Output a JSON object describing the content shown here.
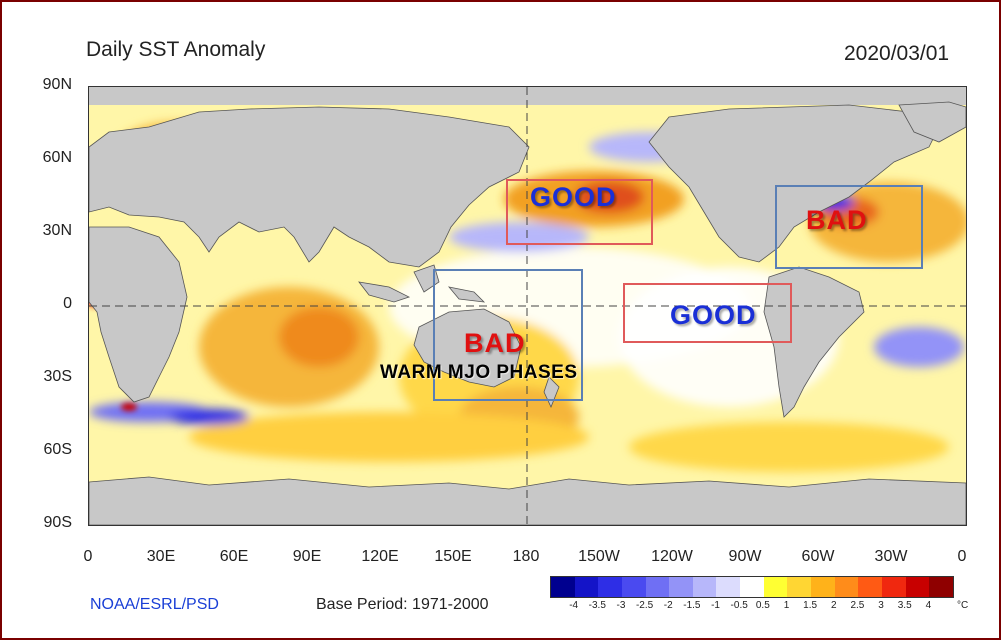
{
  "title": "Daily SST Anomaly",
  "date": "2020/03/01",
  "y_ticks": [
    "90N",
    "60N",
    "30N",
    "0",
    "30S",
    "60S",
    "90S"
  ],
  "x_ticks": [
    "0",
    "30E",
    "60E",
    "90E",
    "120E",
    "150E",
    "180",
    "150W",
    "120W",
    "90W",
    "60W",
    "30W",
    "0"
  ],
  "source": "NOAA/ESRL/PSD",
  "base_period": "Base Period: 1971-2000",
  "colorbar": {
    "labels": [
      "-4",
      "-3.5",
      "-3",
      "-2.5",
      "-2",
      "-1.5",
      "-1",
      "-0.5",
      "0.5",
      "1",
      "1.5",
      "2",
      "2.5",
      "3",
      "3.5",
      "4"
    ],
    "unit": "°C",
    "colors": [
      "#00008f",
      "#1414c8",
      "#2e2ee6",
      "#4a4af0",
      "#6f6ff4",
      "#9393f7",
      "#b7b7fa",
      "#dcdcfd",
      "#ffffff",
      "#ffff33",
      "#ffd633",
      "#ffb21a",
      "#ff8c1a",
      "#ff5a14",
      "#f0280f",
      "#c80000",
      "#8f0000"
    ]
  },
  "annotations": {
    "good_north_pacific": "GOOD",
    "bad_west_atlantic": "BAD",
    "good_east_pacific": "GOOD",
    "bad_australia": "BAD",
    "warm_mjo": "WARM MJO PHASES"
  },
  "colors": {
    "land": "#c8c8c8",
    "good_box": "#e05a5a",
    "bad_box": "#5a7fb5",
    "good_text": "#1a2fd6",
    "bad_text": "#e01010"
  }
}
